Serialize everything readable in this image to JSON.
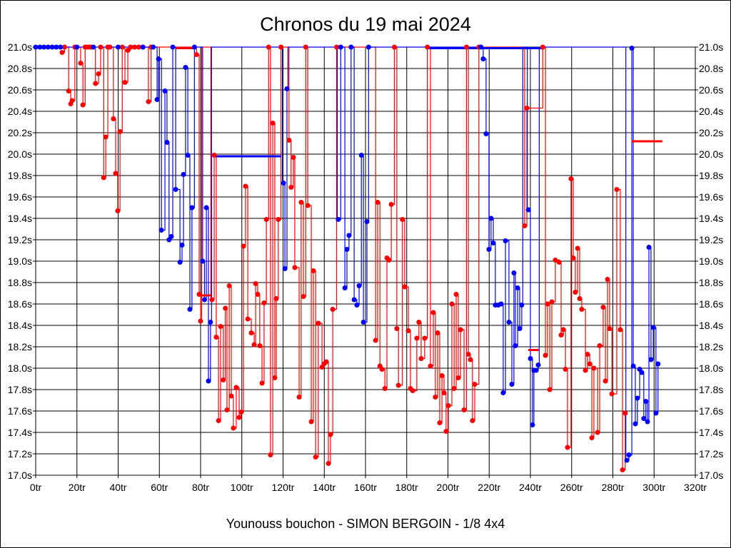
{
  "chart_data": {
    "type": "line",
    "title": "Chronos du 19 mai 2024",
    "subtitle": "Younouss bouchon - SIMON BERGOIN - 1/8 4x4",
    "xlabel": "",
    "ylabel": "",
    "xlim": [
      0,
      320
    ],
    "ylim": [
      17.0,
      21.0
    ],
    "grid": true,
    "x_ticks": [
      "0tr",
      "20tr",
      "40tr",
      "60tr",
      "80tr",
      "100tr",
      "120tr",
      "140tr",
      "160tr",
      "180tr",
      "200tr",
      "220tr",
      "240tr",
      "260tr",
      "280tr",
      "300tr",
      "320tr"
    ],
    "y_ticks": [
      "17.0s",
      "17.2s",
      "17.4s",
      "17.6s",
      "17.8s",
      "18.0s",
      "18.2s",
      "18.4s",
      "18.6s",
      "18.8s",
      "19.0s",
      "19.2s",
      "19.4s",
      "19.6s",
      "19.8s",
      "20.0s",
      "20.2s",
      "20.4s",
      "20.6s",
      "20.8s",
      "21.0s"
    ],
    "colors": {
      "red": "#ff0000",
      "blue": "#0000ff",
      "black": "#000000"
    },
    "series": [
      {
        "name": "red",
        "color": "#ff0000",
        "points": [
          [
            12.8,
            20.95
          ],
          [
            14,
            21
          ],
          [
            16,
            20.59
          ],
          [
            17,
            20.47
          ],
          [
            17.7,
            20.5
          ],
          [
            19,
            21
          ],
          [
            21.8,
            20.85
          ],
          [
            22.9,
            20.46
          ],
          [
            24,
            21
          ],
          [
            25,
            21
          ],
          [
            26,
            21
          ],
          [
            27,
            21
          ],
          [
            29,
            20.66
          ],
          [
            30.5,
            20.75
          ],
          [
            31.5,
            21
          ],
          [
            33,
            19.78
          ],
          [
            34,
            20.16
          ],
          [
            35,
            21
          ],
          [
            36,
            21
          ],
          [
            37.7,
            20.33
          ],
          [
            38.8,
            19.82
          ],
          [
            39.8,
            19.47
          ],
          [
            40.9,
            20.21
          ],
          [
            42,
            21
          ],
          [
            43.3,
            20.67
          ],
          [
            44.7,
            20.97
          ],
          [
            46,
            21
          ],
          [
            48,
            21
          ],
          [
            50,
            21
          ],
          [
            52,
            21
          ],
          [
            54.7,
            20.49
          ],
          [
            56,
            21
          ],
          [
            78,
            20.93
          ],
          [
            79.3,
            18.69
          ],
          [
            80,
            18.44
          ],
          [
            85.5,
            18.64
          ],
          [
            86.6,
            19.99
          ],
          [
            87.6,
            18.29
          ],
          [
            88.7,
            17.51
          ],
          [
            89.7,
            18.39
          ],
          [
            91,
            17.89
          ],
          [
            92,
            18.56
          ],
          [
            92.8,
            17.61
          ],
          [
            93.9,
            18.77
          ],
          [
            94.9,
            17.74
          ],
          [
            95.9,
            17.44
          ],
          [
            97.3,
            17.82
          ],
          [
            98.7,
            17.54
          ],
          [
            99.7,
            17.59
          ],
          [
            100.8,
            19.14
          ],
          [
            101.8,
            19.7
          ],
          [
            102.9,
            18.46
          ],
          [
            104.6,
            18.33
          ],
          [
            106,
            18.22
          ],
          [
            106.7,
            18.79
          ],
          [
            107.7,
            18.69
          ],
          [
            108.7,
            18.21
          ],
          [
            109.8,
            17.86
          ],
          [
            110.8,
            18.61
          ],
          [
            111.9,
            19.39
          ],
          [
            113,
            21
          ],
          [
            113.9,
            17.19
          ],
          [
            115,
            20.29
          ],
          [
            116,
            17.91
          ],
          [
            116.7,
            18.65
          ],
          [
            117.7,
            19.39
          ],
          [
            119,
            21
          ],
          [
            122.9,
            20.13
          ],
          [
            123.9,
            19.69
          ],
          [
            125,
            19.97
          ],
          [
            125.7,
            18.94
          ],
          [
            127.8,
            17.73
          ],
          [
            128.8,
            19.55
          ],
          [
            129.9,
            18.67
          ],
          [
            131,
            21
          ],
          [
            132,
            19.52
          ],
          [
            133.7,
            17.5
          ],
          [
            134.7,
            18.91
          ],
          [
            135.8,
            17.17
          ],
          [
            137.1,
            18.42
          ],
          [
            138.9,
            18.01
          ],
          [
            139.9,
            18.04
          ],
          [
            141,
            18.06
          ],
          [
            142,
            17.11
          ],
          [
            143,
            17.38
          ],
          [
            144.1,
            18.55
          ],
          [
            146,
            21
          ],
          [
            164.9,
            18.26
          ],
          [
            165.9,
            19.55
          ],
          [
            167,
            18.02
          ],
          [
            168,
            17.99
          ],
          [
            169.4,
            17.81
          ],
          [
            170.4,
            19.03
          ],
          [
            171.4,
            19.01
          ],
          [
            172.5,
            19.53
          ],
          [
            174,
            21
          ],
          [
            175.2,
            18.37
          ],
          [
            176,
            17.84
          ],
          [
            177.9,
            19.39
          ],
          [
            179,
            18.76
          ],
          [
            180.8,
            18.35
          ],
          [
            181.8,
            17.81
          ],
          [
            182.9,
            17.79
          ],
          [
            184.9,
            18.28
          ],
          [
            185.9,
            18.43
          ],
          [
            187,
            18.09
          ],
          [
            188.7,
            18.28
          ],
          [
            190,
            21
          ],
          [
            191.5,
            18.02
          ],
          [
            192.9,
            18.52
          ],
          [
            193.9,
            17.73
          ],
          [
            195,
            18.33
          ],
          [
            196,
            17.49
          ],
          [
            197.1,
            17.93
          ],
          [
            198.1,
            17.77
          ],
          [
            199.1,
            17.41
          ],
          [
            200.2,
            17.65
          ],
          [
            201.9,
            18.6
          ],
          [
            203,
            17.81
          ],
          [
            204,
            18.69
          ],
          [
            205,
            17.91
          ],
          [
            206.1,
            18.36
          ],
          [
            207.8,
            17.61
          ],
          [
            209,
            21
          ],
          [
            209.9,
            18.13
          ],
          [
            210.9,
            18.08
          ],
          [
            211.9,
            17.51
          ],
          [
            213,
            17.85
          ],
          [
            215,
            21
          ],
          [
            237.2,
            19.33
          ],
          [
            238.3,
            20.43
          ],
          [
            246,
            21
          ],
          [
            247.3,
            18.12
          ],
          [
            248.3,
            18.6
          ],
          [
            249.4,
            17.8
          ],
          [
            250.4,
            18.62
          ],
          [
            252.1,
            19.01
          ],
          [
            253.9,
            18.99
          ],
          [
            254.9,
            18.31
          ],
          [
            256,
            18.36
          ],
          [
            257,
            17.99
          ],
          [
            258,
            17.26
          ],
          [
            259.7,
            19.77
          ],
          [
            260.8,
            19.03
          ],
          [
            261.8,
            18.71
          ],
          [
            262.9,
            19.12
          ],
          [
            263.9,
            18.65
          ],
          [
            264.9,
            18.55
          ],
          [
            266.7,
            17.98
          ],
          [
            267.7,
            18.13
          ],
          [
            268.8,
            18.04
          ],
          [
            269.8,
            17.35
          ],
          [
            270.8,
            18.0
          ],
          [
            272.6,
            17.4
          ],
          [
            273.6,
            18.21
          ],
          [
            275.3,
            18.57
          ],
          [
            276.4,
            17.88
          ],
          [
            277.4,
            18.83
          ],
          [
            278.4,
            18.37
          ],
          [
            279.5,
            17.76
          ],
          [
            281.9,
            19.67
          ],
          [
            283.6,
            18.36
          ],
          [
            284.7,
            17.05
          ],
          [
            286,
            17.58
          ]
        ]
      },
      {
        "name": "blue",
        "color": "#0000ff",
        "points": [
          [
            0,
            21
          ],
          [
            2,
            21
          ],
          [
            4,
            21
          ],
          [
            6,
            21
          ],
          [
            8,
            21
          ],
          [
            10,
            21
          ],
          [
            12,
            21
          ],
          [
            20,
            21
          ],
          [
            28,
            21
          ],
          [
            40,
            21
          ],
          [
            52,
            21
          ],
          [
            57,
            21
          ],
          [
            58.9,
            20.51
          ],
          [
            59.6,
            20.89
          ],
          [
            61,
            19.29
          ],
          [
            62.7,
            20.59
          ],
          [
            63.7,
            20.11
          ],
          [
            64.7,
            19.2
          ],
          [
            65.8,
            19.23
          ],
          [
            66.5,
            21
          ],
          [
            67.9,
            19.67
          ],
          [
            70,
            18.99
          ],
          [
            71,
            19.15
          ],
          [
            71.7,
            19.81
          ],
          [
            72.7,
            20.81
          ],
          [
            73.8,
            19.99
          ],
          [
            74.8,
            18.55
          ],
          [
            75.8,
            19.5
          ],
          [
            77,
            21
          ],
          [
            81,
            19.0
          ],
          [
            81.9,
            18.64
          ],
          [
            82.8,
            19.5
          ],
          [
            83.8,
            17.88
          ],
          [
            84.8,
            18.43
          ],
          [
            120.2,
            19.73
          ],
          [
            120.9,
            18.93
          ],
          [
            121.9,
            20.61
          ],
          [
            146.8,
            19.39
          ],
          [
            148,
            21
          ],
          [
            150,
            18.75
          ],
          [
            151,
            19.11
          ],
          [
            152,
            19.24
          ],
          [
            153,
            21
          ],
          [
            154.5,
            18.64
          ],
          [
            155.8,
            18.59
          ],
          [
            156.9,
            18.77
          ],
          [
            158,
            19.99
          ],
          [
            159,
            18.43
          ],
          [
            160.7,
            19.37
          ],
          [
            161.5,
            21
          ],
          [
            216,
            21
          ],
          [
            217.1,
            20.89
          ],
          [
            218.5,
            20.19
          ],
          [
            219.9,
            19.11
          ],
          [
            220.9,
            19.4
          ],
          [
            222,
            19.17
          ],
          [
            223,
            18.59
          ],
          [
            224.4,
            18.59
          ],
          [
            225.8,
            18.6
          ],
          [
            226.8,
            17.77
          ],
          [
            227.9,
            19.19
          ],
          [
            229.6,
            18.43
          ],
          [
            231,
            17.85
          ],
          [
            232,
            18.89
          ],
          [
            232.7,
            18.21
          ],
          [
            233.8,
            18.75
          ],
          [
            234.8,
            18.37
          ],
          [
            235.8,
            18.59
          ],
          [
            239,
            19.48
          ],
          [
            240,
            18.09
          ],
          [
            241,
            17.47
          ],
          [
            241.7,
            17.98
          ],
          [
            242.8,
            17.98
          ],
          [
            243.8,
            18.03
          ],
          [
            286.8,
            17.14
          ],
          [
            287.8,
            17.19
          ],
          [
            289.2,
            20.99
          ],
          [
            289.9,
            18.02
          ],
          [
            290.9,
            17.48
          ],
          [
            291.9,
            17.72
          ],
          [
            293,
            17.99
          ],
          [
            294,
            17.96
          ],
          [
            295,
            17.53
          ],
          [
            296,
            17.69
          ],
          [
            296.8,
            17.5
          ],
          [
            297.5,
            19.13
          ],
          [
            298.5,
            18.08
          ],
          [
            299.6,
            18.38
          ],
          [
            300.9,
            17.58
          ],
          [
            301.9,
            18.04
          ]
        ]
      }
    ],
    "segments": [
      {
        "color": "#0000ff",
        "x": [
          87,
          119
        ],
        "y": 19.98
      },
      {
        "color": "#ff0000",
        "x": [
          289,
          304
        ],
        "y": 20.12
      },
      {
        "color": "#ff0000",
        "x": [
          79,
          85
        ],
        "y": 18.68
      },
      {
        "color": "#ff0000",
        "x": [
          239,
          244
        ],
        "y": 18.17
      },
      {
        "color": "#ff0000",
        "x": [
          68,
          78
        ],
        "y": 20.99
      },
      {
        "color": "#0000ff",
        "x": [
          190,
          246
        ],
        "y": 20.99
      }
    ]
  }
}
